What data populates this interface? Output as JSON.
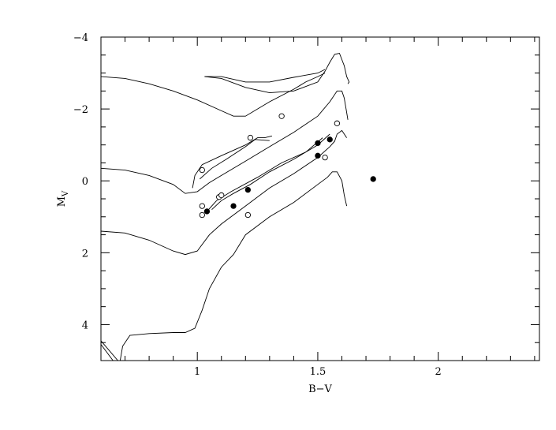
{
  "chart_data": {
    "type": "scatter",
    "title": "",
    "xlabel": "B−V",
    "ylabel": "M",
    "ylabel_sub": "V",
    "xlim": [
      0.6,
      2.42
    ],
    "ylim": [
      5.0,
      -4.0
    ],
    "y_inverted": true,
    "x_ticks": [
      1,
      1.5,
      2
    ],
    "x_tick_labels": [
      "1",
      "1.5",
      "2"
    ],
    "x_minor_step": 0.1,
    "y_ticks": [
      -4,
      -2,
      0,
      2,
      4
    ],
    "y_tick_labels": [
      "−4",
      "−2",
      "0",
      "2",
      "4"
    ],
    "y_minor_step": 0.5,
    "grid": false,
    "series": [
      {
        "marker": "filled-circle",
        "points": [
          {
            "x": 1.04,
            "y": 0.85
          },
          {
            "x": 1.15,
            "y": 0.7
          },
          {
            "x": 1.21,
            "y": 0.25
          },
          {
            "x": 1.5,
            "y": -1.05
          },
          {
            "x": 1.55,
            "y": -1.15
          },
          {
            "x": 1.5,
            "y": -0.7
          },
          {
            "x": 1.73,
            "y": -0.05
          }
        ]
      },
      {
        "marker": "open-circle",
        "points": [
          {
            "x": 1.02,
            "y": -0.3
          },
          {
            "x": 1.02,
            "y": 0.7
          },
          {
            "x": 1.02,
            "y": 0.95
          },
          {
            "x": 1.09,
            "y": 0.45
          },
          {
            "x": 1.1,
            "y": 0.4
          },
          {
            "x": 1.21,
            "y": 0.95
          },
          {
            "x": 1.22,
            "y": -1.2
          },
          {
            "x": 1.35,
            "y": -1.8
          },
          {
            "x": 1.53,
            "y": -0.65
          },
          {
            "x": 1.58,
            "y": -1.6
          }
        ]
      }
    ],
    "curves": [
      {
        "points": [
          [
            0.6,
            -2.9
          ],
          [
            0.7,
            -2.85
          ],
          [
            0.8,
            -2.7
          ],
          [
            0.9,
            -2.5
          ],
          [
            1.0,
            -2.25
          ],
          [
            1.1,
            -1.95
          ],
          [
            1.15,
            -1.8
          ],
          [
            1.2,
            -1.8
          ],
          [
            1.3,
            -2.2
          ],
          [
            1.4,
            -2.55
          ],
          [
            1.45,
            -2.75
          ],
          [
            1.5,
            -2.9
          ],
          [
            1.53,
            -3.0
          ]
        ]
      },
      {
        "points": [
          [
            1.03,
            -2.9
          ],
          [
            1.1,
            -2.85
          ],
          [
            1.2,
            -2.6
          ],
          [
            1.3,
            -2.45
          ],
          [
            1.4,
            -2.5
          ],
          [
            1.5,
            -2.75
          ],
          [
            1.53,
            -3.05
          ],
          [
            1.55,
            -3.3
          ],
          [
            1.57,
            -3.52
          ],
          [
            1.59,
            -3.55
          ],
          [
            1.61,
            -3.2
          ],
          [
            1.62,
            -2.9
          ],
          [
            1.63,
            -2.75
          ],
          [
            1.625,
            -2.7
          ]
        ]
      },
      {
        "points": [
          [
            1.03,
            -2.9
          ],
          [
            1.1,
            -2.9
          ],
          [
            1.2,
            -2.75
          ],
          [
            1.3,
            -2.75
          ],
          [
            1.4,
            -2.88
          ],
          [
            1.5,
            -3.0
          ],
          [
            1.53,
            -3.1
          ]
        ]
      },
      {
        "points": [
          [
            0.6,
            -0.35
          ],
          [
            0.7,
            -0.3
          ],
          [
            0.8,
            -0.15
          ],
          [
            0.9,
            0.1
          ],
          [
            0.95,
            0.35
          ],
          [
            1.0,
            0.3
          ],
          [
            1.05,
            0.05
          ],
          [
            1.1,
            -0.15
          ],
          [
            1.2,
            -0.55
          ],
          [
            1.3,
            -0.95
          ],
          [
            1.4,
            -1.35
          ],
          [
            1.5,
            -1.8
          ],
          [
            1.55,
            -2.2
          ],
          [
            1.58,
            -2.5
          ],
          [
            1.6,
            -2.5
          ],
          [
            1.61,
            -2.3
          ],
          [
            1.62,
            -1.9
          ],
          [
            1.625,
            -1.7
          ]
        ]
      },
      {
        "points": [
          [
            0.98,
            0.2
          ],
          [
            0.99,
            -0.15
          ],
          [
            1.02,
            -0.45
          ],
          [
            1.1,
            -0.7
          ],
          [
            1.2,
            -1.0
          ],
          [
            1.25,
            -1.2
          ],
          [
            1.28,
            -1.2
          ],
          [
            1.31,
            -1.25
          ]
        ]
      },
      {
        "points": [
          [
            1.01,
            -0.05
          ],
          [
            1.06,
            -0.35
          ],
          [
            1.12,
            -0.6
          ],
          [
            1.2,
            -0.95
          ],
          [
            1.24,
            -1.15
          ],
          [
            1.3,
            -1.12
          ]
        ]
      },
      {
        "points": [
          [
            0.6,
            1.4
          ],
          [
            0.7,
            1.45
          ],
          [
            0.8,
            1.65
          ],
          [
            0.9,
            1.95
          ],
          [
            0.95,
            2.05
          ],
          [
            1.0,
            1.95
          ],
          [
            1.05,
            1.5
          ],
          [
            1.1,
            1.2
          ],
          [
            1.2,
            0.7
          ],
          [
            1.3,
            0.2
          ],
          [
            1.4,
            -0.2
          ],
          [
            1.5,
            -0.65
          ],
          [
            1.55,
            -0.95
          ],
          [
            1.57,
            -1.1
          ],
          [
            1.58,
            -1.3
          ],
          [
            1.6,
            -1.4
          ],
          [
            1.62,
            -1.2
          ]
        ]
      },
      {
        "points": [
          [
            1.06,
            0.8
          ],
          [
            1.1,
            0.55
          ],
          [
            1.15,
            0.35
          ],
          [
            1.22,
            0.1
          ],
          [
            1.3,
            -0.25
          ],
          [
            1.4,
            -0.6
          ],
          [
            1.5,
            -1.0
          ],
          [
            1.55,
            -1.3
          ]
        ]
      },
      {
        "points": [
          [
            1.04,
            0.85
          ],
          [
            1.08,
            0.55
          ],
          [
            1.14,
            0.3
          ],
          [
            1.25,
            -0.1
          ],
          [
            1.35,
            -0.5
          ],
          [
            1.45,
            -0.8
          ],
          [
            1.52,
            -1.2
          ]
        ]
      },
      {
        "points": [
          [
            0.68,
            5.0
          ],
          [
            0.69,
            4.6
          ],
          [
            0.72,
            4.3
          ],
          [
            0.8,
            4.25
          ],
          [
            0.9,
            4.22
          ],
          [
            0.95,
            4.22
          ],
          [
            0.99,
            4.1
          ],
          [
            1.02,
            3.6
          ],
          [
            1.05,
            3.0
          ],
          [
            1.1,
            2.4
          ],
          [
            1.15,
            2.05
          ],
          [
            1.2,
            1.5
          ],
          [
            1.3,
            1.0
          ],
          [
            1.4,
            0.6
          ],
          [
            1.5,
            0.1
          ],
          [
            1.54,
            -0.1
          ],
          [
            1.56,
            -0.25
          ],
          [
            1.58,
            -0.25
          ],
          [
            1.6,
            0.0
          ],
          [
            1.61,
            0.4
          ],
          [
            1.62,
            0.7
          ]
        ]
      },
      {
        "points": [
          [
            0.6,
            4.45
          ],
          [
            0.67,
            5.0
          ]
        ]
      },
      {
        "points": [
          [
            0.6,
            4.55
          ],
          [
            0.65,
            5.0
          ]
        ]
      }
    ]
  }
}
